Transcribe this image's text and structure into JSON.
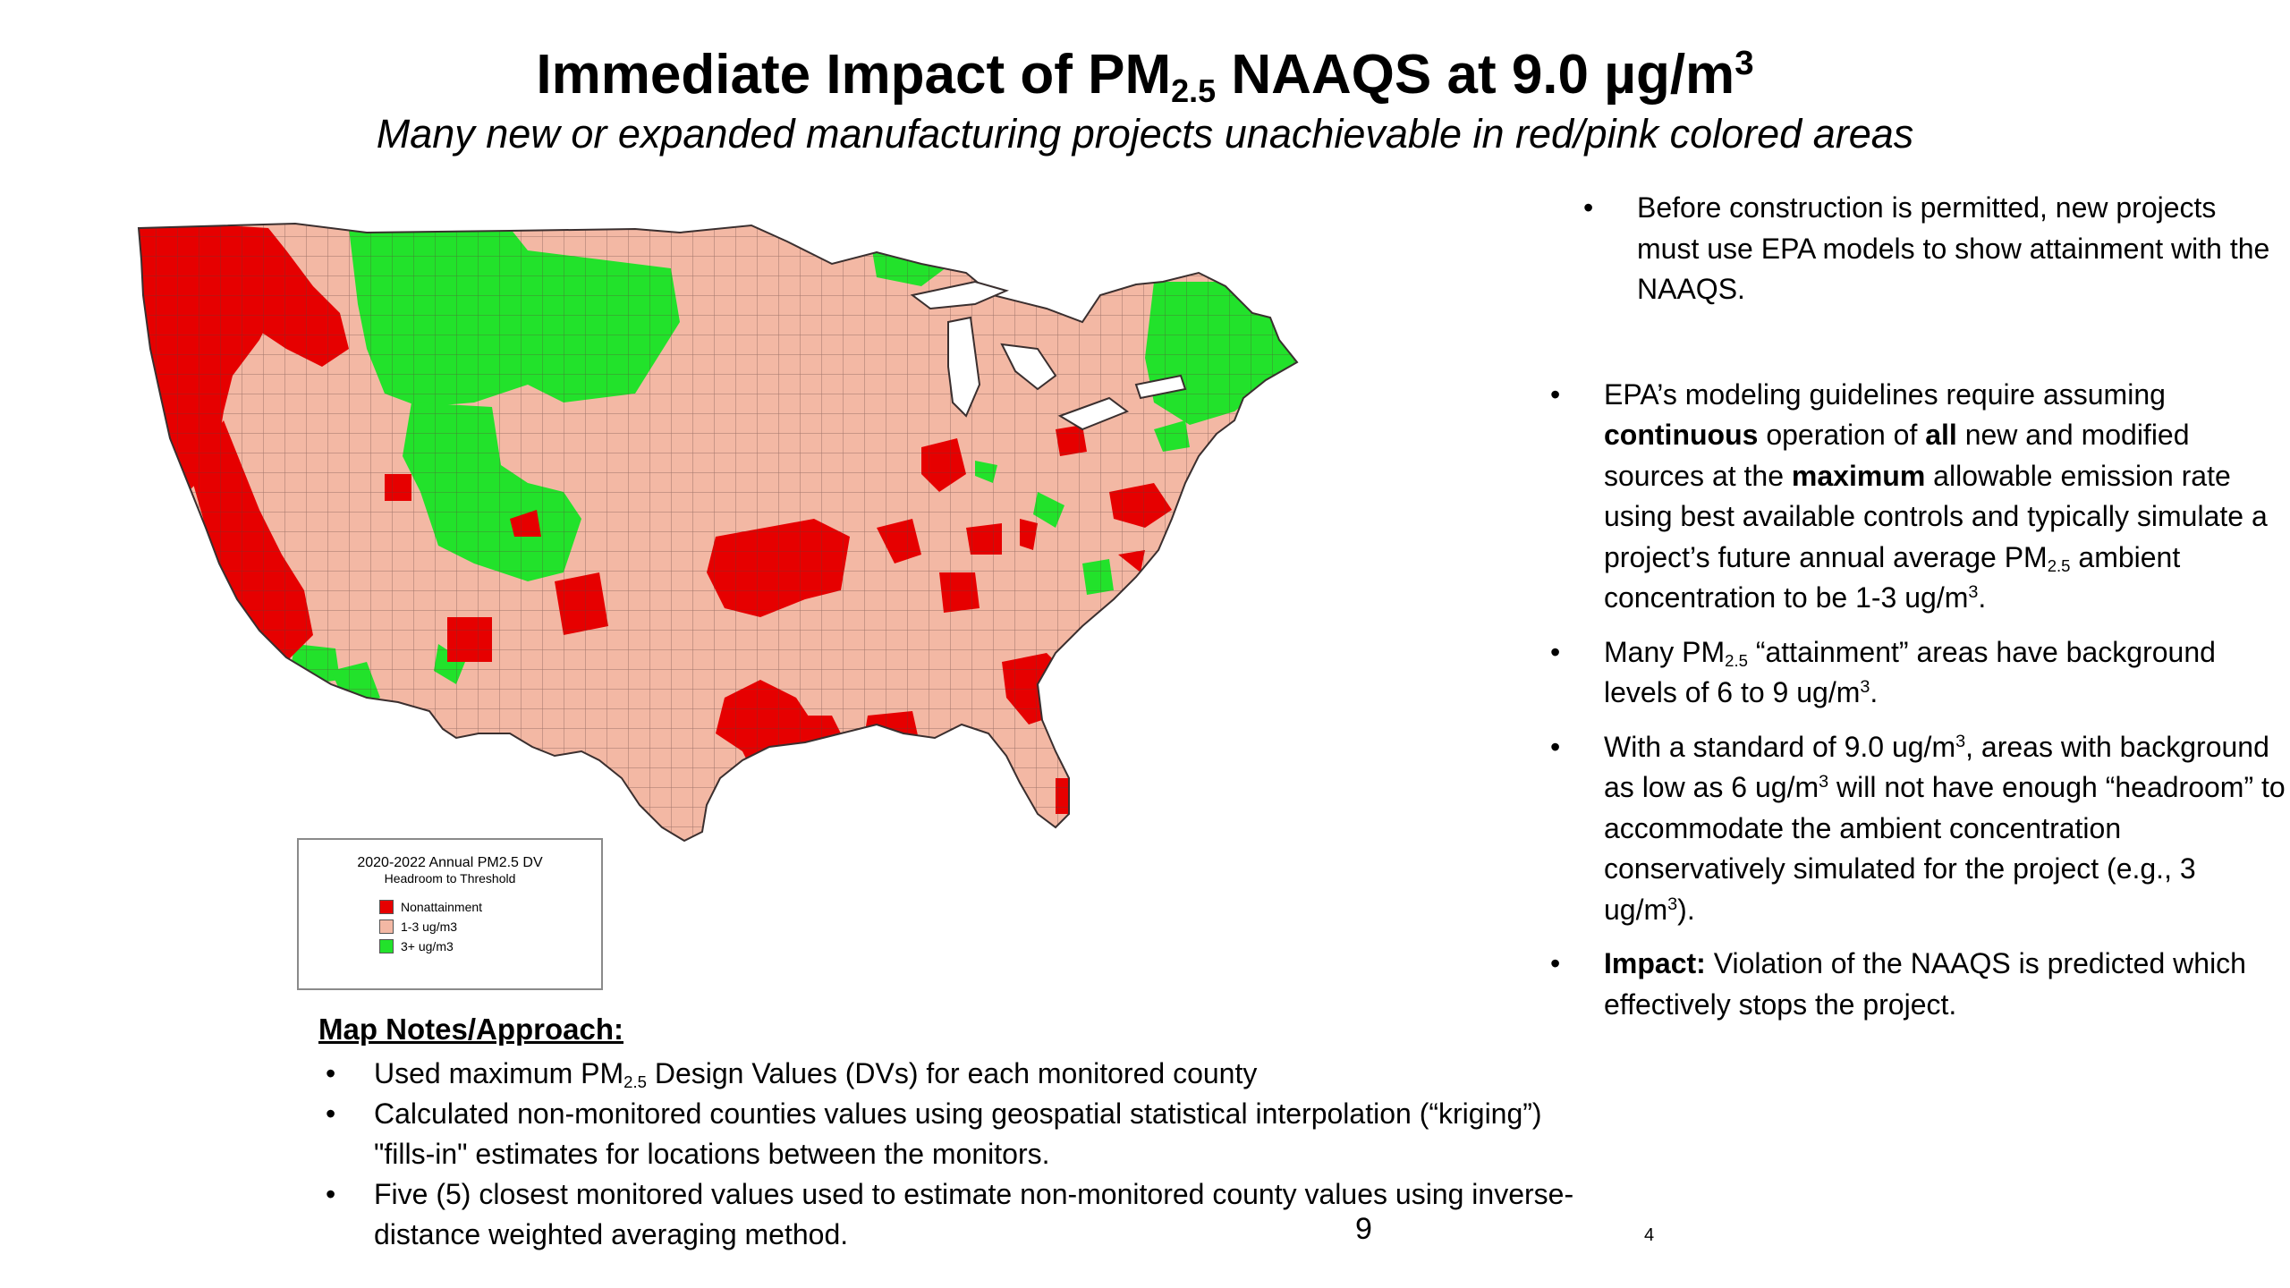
{
  "title": {
    "prefix": "Immediate Impact of PM",
    "sub": "2.5",
    "middle": " NAAQS at 9.0 µg/m",
    "sup": "3"
  },
  "subtitle": "Many new or expanded manufacturing projects unachievable in red/pink colored areas",
  "colors": {
    "nonattainment": "#e60000",
    "one_to_three": "#f3b8a4",
    "three_plus": "#22e22b",
    "border": "#3a2f2f"
  },
  "legend": {
    "title": "2020-2022 Annual PM2.5 DV",
    "subtitle": "Headroom to Threshold",
    "items": [
      {
        "label": "Nonattainment",
        "color": "#e60000"
      },
      {
        "label": "1-3 ug/m3",
        "color": "#f3b8a4"
      },
      {
        "label": "3+ ug/m3",
        "color": "#22e22b"
      }
    ]
  },
  "notes": {
    "heading": "Map Notes/Approach:",
    "item1_a": "Used maximum PM",
    "item1_sub": "2.5",
    "item1_b": " Design Values (DVs) for each monitored county",
    "item2": "Calculated non-monitored counties values using geospatial statistical interpolation (“kriging”) \"fills-in\" estimates for locations between the monitors.",
    "item3": "Five (5) closest monitored values used to estimate non-monitored county values using inverse-distance weighted averaging method."
  },
  "bullets": {
    "b1": "Before construction is permitted, new projects must use EPA models to show attainment with the NAAQS.",
    "b2_a": "EPA’s modeling guidelines require assuming ",
    "b2_bold1": "continuous",
    "b2_b": " operation of ",
    "b2_bold2": "all",
    "b2_c": " new and modified sources at the ",
    "b2_bold3": "maximum",
    "b2_d": " allowable emission rate using best available controls and typically simulate a project’s future annual average PM",
    "b2_sub": "2.5",
    "b2_e": " ambient concentration to be 1-3 ug/m",
    "b2_sup": "3",
    "b2_f": ".",
    "b3_a": "Many PM",
    "b3_sub": "2.5",
    "b3_b": " “attainment” areas have background levels of 6 to 9 ug/m",
    "b3_sup": "3",
    "b3_c": ".",
    "b4_a": "With a standard of 9.0 ug/m",
    "b4_sup1": "3",
    "b4_b": ", areas with background as low as 6 ug/m",
    "b4_sup2": "3",
    "b4_c": " will not have enough “headroom” to accommodate the ambient concentration conservatively simulated for the project (e.g., 3 ug/m",
    "b4_sup3": "3",
    "b4_d": ").",
    "b5_bold": "Impact:",
    "b5_text": " Violation of the NAAQS is predicted which effectively stops the project."
  },
  "page_numbers": {
    "main": "9",
    "small": "4"
  }
}
